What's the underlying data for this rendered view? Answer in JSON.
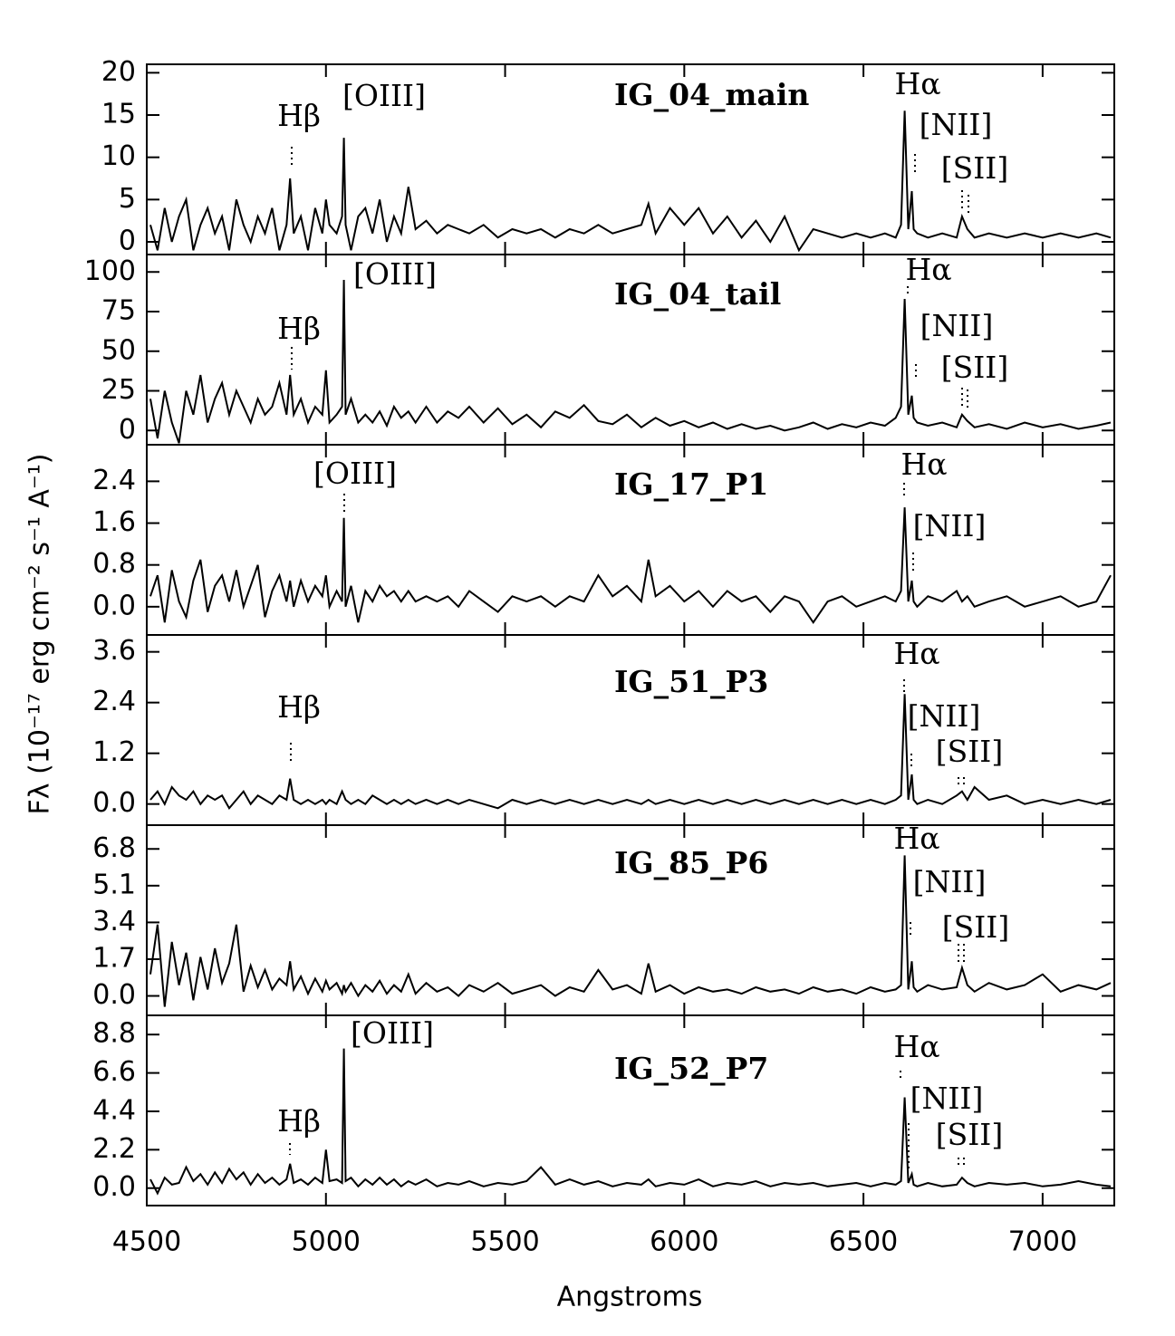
{
  "chart_data": [
    {
      "type": "line",
      "label": "IG_04_main",
      "ylabel": "Fλ (10⁻¹⁷ erg cm⁻² s⁻¹ A⁻¹)",
      "color": "#000000",
      "annotations": [
        "Hβ",
        "[OIII]",
        "Hα",
        "[NII]",
        "[SII]"
      ],
      "xlim": [
        4500,
        7200
      ],
      "ylim": [
        -1.5,
        21
      ],
      "yticks": [
        0,
        5,
        10,
        15,
        20
      ],
      "x": [
        4510,
        4530,
        4550,
        4570,
        4590,
        4610,
        4630,
        4650,
        4670,
        4690,
        4710,
        4730,
        4750,
        4770,
        4790,
        4810,
        4830,
        4850,
        4870,
        4890,
        4900,
        4910,
        4930,
        4950,
        4970,
        4990,
        5000,
        5010,
        5030,
        5045,
        5050,
        5055,
        5070,
        5090,
        5110,
        5130,
        5150,
        5170,
        5190,
        5210,
        5230,
        5250,
        5280,
        5310,
        5340,
        5370,
        5400,
        5440,
        5480,
        5520,
        5560,
        5600,
        5640,
        5680,
        5720,
        5760,
        5800,
        5840,
        5880,
        5900,
        5920,
        5960,
        6000,
        6040,
        6080,
        6120,
        6160,
        6200,
        6240,
        6280,
        6320,
        6360,
        6400,
        6440,
        6480,
        6520,
        6560,
        6590,
        6605,
        6615,
        6625,
        6635,
        6640,
        6650,
        6680,
        6720,
        6760,
        6775,
        6790,
        6810,
        6850,
        6900,
        6950,
        7000,
        7050,
        7100,
        7150,
        7190
      ],
      "values": [
        2,
        -1,
        4,
        0,
        3,
        5,
        -1,
        2,
        4,
        1,
        3,
        -1,
        5,
        2,
        0,
        3,
        1,
        4,
        -1,
        2,
        7.5,
        1,
        3,
        -1,
        4,
        1,
        5,
        2,
        1,
        3,
        12.3,
        2,
        -1,
        3,
        4,
        1,
        5,
        0,
        3,
        1,
        6.5,
        1.5,
        2.5,
        1,
        2,
        1.5,
        1,
        2,
        0.5,
        1.5,
        1,
        1.5,
        0.5,
        1.5,
        1,
        2,
        1,
        1.5,
        2,
        4.5,
        1,
        4,
        2,
        4,
        1,
        3,
        0.5,
        2.5,
        0,
        3,
        -1,
        1.5,
        1,
        0.5,
        1,
        0.5,
        1,
        0.5,
        2,
        15.5,
        1.5,
        6,
        1.5,
        1,
        0.5,
        1,
        0.5,
        3,
        1.5,
        0.5,
        1,
        0.5,
        1,
        0.5,
        1,
        0.5,
        1,
        0.5
      ]
    },
    {
      "type": "line",
      "label": "IG_04_tail",
      "color": "#000000",
      "annotations": [
        "Hβ",
        "[OIII]",
        "Hα",
        "[NII]",
        "[SII]"
      ],
      "xlim": [
        4500,
        7200
      ],
      "ylim": [
        -9,
        111
      ],
      "yticks": [
        0,
        25,
        50,
        75,
        100
      ],
      "x": [
        4510,
        4530,
        4550,
        4570,
        4590,
        4610,
        4630,
        4650,
        4670,
        4690,
        4710,
        4730,
        4750,
        4770,
        4790,
        4810,
        4830,
        4850,
        4870,
        4890,
        4900,
        4910,
        4930,
        4950,
        4970,
        4990,
        5000,
        5010,
        5030,
        5045,
        5050,
        5055,
        5070,
        5090,
        5110,
        5130,
        5150,
        5170,
        5190,
        5210,
        5230,
        5250,
        5280,
        5310,
        5340,
        5370,
        5400,
        5440,
        5480,
        5520,
        5560,
        5600,
        5640,
        5680,
        5720,
        5760,
        5800,
        5840,
        5880,
        5900,
        5920,
        5960,
        6000,
        6040,
        6080,
        6120,
        6160,
        6200,
        6240,
        6280,
        6320,
        6360,
        6400,
        6440,
        6480,
        6520,
        6560,
        6590,
        6605,
        6615,
        6625,
        6635,
        6640,
        6650,
        6680,
        6720,
        6760,
        6775,
        6790,
        6810,
        6850,
        6900,
        6950,
        7000,
        7050,
        7100,
        7150,
        7190
      ],
      "values": [
        20,
        -5,
        25,
        5,
        -8,
        25,
        10,
        35,
        5,
        20,
        30,
        10,
        25,
        15,
        5,
        20,
        10,
        15,
        30,
        10,
        35,
        10,
        20,
        5,
        15,
        10,
        38,
        5,
        10,
        15,
        95,
        10,
        20,
        5,
        10,
        5,
        12,
        3,
        15,
        8,
        12,
        5,
        15,
        5,
        12,
        8,
        15,
        5,
        14,
        4,
        10,
        2,
        12,
        8,
        16,
        6,
        4,
        10,
        2,
        5,
        8,
        3,
        6,
        2,
        5,
        1,
        4,
        1,
        3,
        0,
        2,
        5,
        1,
        4,
        2,
        5,
        3,
        8,
        15,
        83,
        10,
        22,
        8,
        5,
        3,
        5,
        2,
        10,
        6,
        2,
        4,
        1,
        5,
        2,
        4,
        1,
        3,
        5
      ]
    },
    {
      "type": "line",
      "label": "IG_17_P1",
      "color": "#000000",
      "annotations": [
        "[OIII]",
        "Hα",
        "[NII]"
      ],
      "xlim": [
        4500,
        7200
      ],
      "ylim": [
        -0.54,
        3.1
      ],
      "yticks": [
        {
          "value": 0,
          "label": "0.0"
        },
        0.8,
        1.6,
        2.4
      ],
      "x": [
        4510,
        4530,
        4550,
        4570,
        4590,
        4610,
        4630,
        4650,
        4670,
        4690,
        4710,
        4730,
        4750,
        4770,
        4790,
        4810,
        4830,
        4850,
        4870,
        4890,
        4900,
        4910,
        4930,
        4950,
        4970,
        4990,
        5000,
        5010,
        5030,
        5045,
        5050,
        5055,
        5070,
        5090,
        5110,
        5130,
        5150,
        5170,
        5190,
        5210,
        5230,
        5250,
        5280,
        5310,
        5340,
        5370,
        5400,
        5440,
        5480,
        5520,
        5560,
        5600,
        5640,
        5680,
        5720,
        5760,
        5800,
        5840,
        5880,
        5900,
        5920,
        5960,
        6000,
        6040,
        6080,
        6120,
        6160,
        6200,
        6240,
        6280,
        6320,
        6360,
        6400,
        6440,
        6480,
        6520,
        6560,
        6590,
        6605,
        6615,
        6625,
        6635,
        6640,
        6650,
        6680,
        6720,
        6760,
        6775,
        6790,
        6810,
        6850,
        6900,
        6950,
        7000,
        7050,
        7100,
        7150,
        7190
      ],
      "values": [
        0.2,
        0.6,
        -0.3,
        0.7,
        0.1,
        -0.2,
        0.5,
        0.9,
        -0.1,
        0.4,
        0.6,
        0.1,
        0.7,
        0.0,
        0.4,
        0.8,
        -0.2,
        0.3,
        0.6,
        0.1,
        0.5,
        0.0,
        0.5,
        0.1,
        0.4,
        0.2,
        0.6,
        0.0,
        0.3,
        0.1,
        1.7,
        0.0,
        0.4,
        -0.3,
        0.3,
        0.1,
        0.4,
        0.2,
        0.3,
        0.1,
        0.3,
        0.1,
        0.2,
        0.1,
        0.2,
        0.0,
        0.3,
        0.1,
        -0.1,
        0.2,
        0.1,
        0.2,
        0.0,
        0.2,
        0.1,
        0.6,
        0.2,
        0.4,
        0.1,
        0.9,
        0.2,
        0.4,
        0.1,
        0.3,
        0.0,
        0.3,
        0.1,
        0.2,
        -0.1,
        0.2,
        0.1,
        -0.3,
        0.1,
        0.2,
        0.0,
        0.1,
        0.2,
        0.1,
        0.3,
        1.9,
        0.1,
        0.5,
        0.1,
        0.0,
        0.2,
        0.1,
        0.3,
        0.1,
        0.2,
        0.0,
        0.1,
        0.2,
        0.0,
        0.1,
        0.2,
        0.0,
        0.1,
        0.6
      ]
    },
    {
      "type": "line",
      "label": "IG_51_P3",
      "color": "#000000",
      "annotations": [
        "Hβ",
        "Hα",
        "[NII]",
        "[SII]"
      ],
      "xlim": [
        4500,
        7200
      ],
      "ylim": [
        -0.5,
        4.0
      ],
      "yticks": [
        {
          "value": 0,
          "label": "0.0"
        },
        1.2,
        2.4,
        3.6
      ],
      "x": [
        4510,
        4530,
        4550,
        4570,
        4590,
        4610,
        4630,
        4650,
        4670,
        4690,
        4710,
        4730,
        4750,
        4770,
        4790,
        4810,
        4830,
        4850,
        4870,
        4890,
        4900,
        4910,
        4930,
        4950,
        4970,
        4990,
        5000,
        5010,
        5030,
        5045,
        5050,
        5055,
        5070,
        5090,
        5110,
        5130,
        5150,
        5170,
        5190,
        5210,
        5230,
        5250,
        5280,
        5310,
        5340,
        5370,
        5400,
        5440,
        5480,
        5520,
        5560,
        5600,
        5640,
        5680,
        5720,
        5760,
        5800,
        5840,
        5880,
        5900,
        5920,
        5960,
        6000,
        6040,
        6080,
        6120,
        6160,
        6200,
        6240,
        6280,
        6320,
        6360,
        6400,
        6440,
        6480,
        6520,
        6560,
        6590,
        6605,
        6615,
        6625,
        6635,
        6640,
        6650,
        6680,
        6720,
        6760,
        6775,
        6790,
        6810,
        6850,
        6900,
        6950,
        7000,
        7050,
        7100,
        7150,
        7190
      ],
      "values": [
        0.1,
        0.3,
        0.0,
        0.4,
        0.2,
        0.1,
        0.3,
        0.0,
        0.2,
        0.1,
        0.2,
        -0.1,
        0.1,
        0.3,
        0.0,
        0.2,
        0.1,
        0.0,
        0.2,
        0.1,
        0.6,
        0.1,
        0.0,
        0.1,
        0.0,
        0.1,
        0.0,
        0.1,
        0.0,
        0.3,
        0.2,
        0.1,
        0.0,
        0.1,
        0.0,
        0.2,
        0.1,
        0.0,
        0.1,
        0.0,
        0.1,
        0.0,
        0.1,
        0.0,
        0.1,
        0.0,
        0.1,
        0.0,
        -0.1,
        0.1,
        0.0,
        0.1,
        0.0,
        0.1,
        0.0,
        0.1,
        0.0,
        0.1,
        0.0,
        0.1,
        0.0,
        0.1,
        0.0,
        0.1,
        0.0,
        0.1,
        0.0,
        0.1,
        0.0,
        0.1,
        0.0,
        0.1,
        0.0,
        0.1,
        0.0,
        0.1,
        0.0,
        0.1,
        0.2,
        2.6,
        0.1,
        0.7,
        0.1,
        0.0,
        0.1,
        0.0,
        0.2,
        0.3,
        0.1,
        0.4,
        0.1,
        0.2,
        0.0,
        0.1,
        0.0,
        0.1,
        0.0,
        0.1
      ]
    },
    {
      "type": "line",
      "label": "IG_85_P6",
      "color": "#000000",
      "annotations": [
        "Hα",
        "[NII]",
        "[SII]"
      ],
      "xlim": [
        4500,
        7200
      ],
      "ylim": [
        -0.9,
        7.9
      ],
      "yticks": [
        {
          "value": 0,
          "label": "0.0"
        },
        1.7,
        3.4,
        5.1,
        6.8
      ],
      "x": [
        4510,
        4530,
        4550,
        4570,
        4590,
        4610,
        4630,
        4650,
        4670,
        4690,
        4710,
        4730,
        4750,
        4770,
        4790,
        4810,
        4830,
        4850,
        4870,
        4890,
        4900,
        4910,
        4930,
        4950,
        4970,
        4990,
        5000,
        5010,
        5030,
        5045,
        5050,
        5055,
        5070,
        5090,
        5110,
        5130,
        5150,
        5170,
        5190,
        5210,
        5230,
        5250,
        5280,
        5310,
        5340,
        5370,
        5400,
        5440,
        5480,
        5520,
        5560,
        5600,
        5640,
        5680,
        5720,
        5760,
        5800,
        5840,
        5880,
        5900,
        5920,
        5960,
        6000,
        6040,
        6080,
        6120,
        6160,
        6200,
        6240,
        6280,
        6320,
        6360,
        6400,
        6440,
        6480,
        6520,
        6560,
        6590,
        6605,
        6615,
        6625,
        6635,
        6640,
        6650,
        6680,
        6720,
        6760,
        6775,
        6790,
        6810,
        6850,
        6900,
        6950,
        7000,
        7050,
        7100,
        7150,
        7190
      ],
      "values": [
        1.0,
        3.3,
        -0.5,
        2.5,
        0.5,
        2.0,
        -0.2,
        1.8,
        0.3,
        2.2,
        0.6,
        1.5,
        3.3,
        0.2,
        1.4,
        0.4,
        1.2,
        0.3,
        0.8,
        0.5,
        1.6,
        0.3,
        0.9,
        0.1,
        0.8,
        0.2,
        0.7,
        0.3,
        0.6,
        0.1,
        0.5,
        0.2,
        0.6,
        0.0,
        0.5,
        0.2,
        0.7,
        0.1,
        0.5,
        0.2,
        1.0,
        0.1,
        0.6,
        0.2,
        0.4,
        0.0,
        0.5,
        0.2,
        0.6,
        0.1,
        0.3,
        0.5,
        0.0,
        0.4,
        0.2,
        1.2,
        0.3,
        0.5,
        0.1,
        1.5,
        0.2,
        0.5,
        0.1,
        0.4,
        0.2,
        0.3,
        0.1,
        0.4,
        0.2,
        0.3,
        0.1,
        0.4,
        0.2,
        0.3,
        0.1,
        0.4,
        0.2,
        0.3,
        0.5,
        6.5,
        0.3,
        1.6,
        0.4,
        0.2,
        0.5,
        0.3,
        0.4,
        1.3,
        0.5,
        0.2,
        0.6,
        0.3,
        0.5,
        1.0,
        0.2,
        0.5,
        0.3,
        0.6
      ]
    },
    {
      "type": "line",
      "label": "IG_52_P7",
      "color": "#000000",
      "xlabel": "Angstroms",
      "annotations": [
        "Hβ",
        "[OIII]",
        "Hα",
        "[NII]",
        "[SII]"
      ],
      "xlim": [
        4500,
        7200
      ],
      "xticks": [
        4500,
        5000,
        5500,
        6000,
        6500,
        7000
      ],
      "ylim": [
        -1.0,
        9.9
      ],
      "yticks": [
        {
          "value": 0,
          "label": "0.0"
        },
        2.2,
        4.4,
        6.6,
        8.8
      ],
      "x": [
        4510,
        4530,
        4550,
        4570,
        4590,
        4610,
        4630,
        4650,
        4670,
        4690,
        4710,
        4730,
        4750,
        4770,
        4790,
        4810,
        4830,
        4850,
        4870,
        4890,
        4900,
        4910,
        4930,
        4950,
        4970,
        4990,
        5000,
        5010,
        5030,
        5045,
        5050,
        5055,
        5070,
        5090,
        5110,
        5130,
        5150,
        5170,
        5190,
        5210,
        5230,
        5250,
        5280,
        5310,
        5340,
        5370,
        5400,
        5440,
        5480,
        5520,
        5560,
        5600,
        5640,
        5680,
        5720,
        5760,
        5800,
        5840,
        5880,
        5900,
        5920,
        5960,
        6000,
        6040,
        6080,
        6120,
        6160,
        6200,
        6240,
        6280,
        6320,
        6360,
        6400,
        6440,
        6480,
        6520,
        6560,
        6590,
        6605,
        6615,
        6625,
        6635,
        6640,
        6650,
        6680,
        6720,
        6760,
        6775,
        6790,
        6810,
        6850,
        6900,
        6950,
        7000,
        7050,
        7100,
        7150,
        7190
      ],
      "values": [
        0.5,
        -0.3,
        0.6,
        0.2,
        0.3,
        1.2,
        0.4,
        0.8,
        0.2,
        0.9,
        0.3,
        1.1,
        0.5,
        0.9,
        0.2,
        0.8,
        0.3,
        0.6,
        0.2,
        0.5,
        1.4,
        0.3,
        0.5,
        0.2,
        0.6,
        0.3,
        2.2,
        0.4,
        0.5,
        0.3,
        8.0,
        0.4,
        0.6,
        0.1,
        0.5,
        0.2,
        0.6,
        0.2,
        0.5,
        0.1,
        0.4,
        0.2,
        0.5,
        0.1,
        0.3,
        0.2,
        0.4,
        0.1,
        0.3,
        0.2,
        0.4,
        1.2,
        0.2,
        0.5,
        0.2,
        0.4,
        0.1,
        0.3,
        0.2,
        0.5,
        0.1,
        0.3,
        0.2,
        0.5,
        0.1,
        0.3,
        0.2,
        0.4,
        0.1,
        0.3,
        0.2,
        0.3,
        0.1,
        0.2,
        0.3,
        0.1,
        0.3,
        0.2,
        0.4,
        5.2,
        0.3,
        0.8,
        0.2,
        0.1,
        0.3,
        0.1,
        0.2,
        0.6,
        0.3,
        0.1,
        0.3,
        0.2,
        0.3,
        0.1,
        0.2,
        0.4,
        0.2,
        0.1
      ]
    }
  ]
}
